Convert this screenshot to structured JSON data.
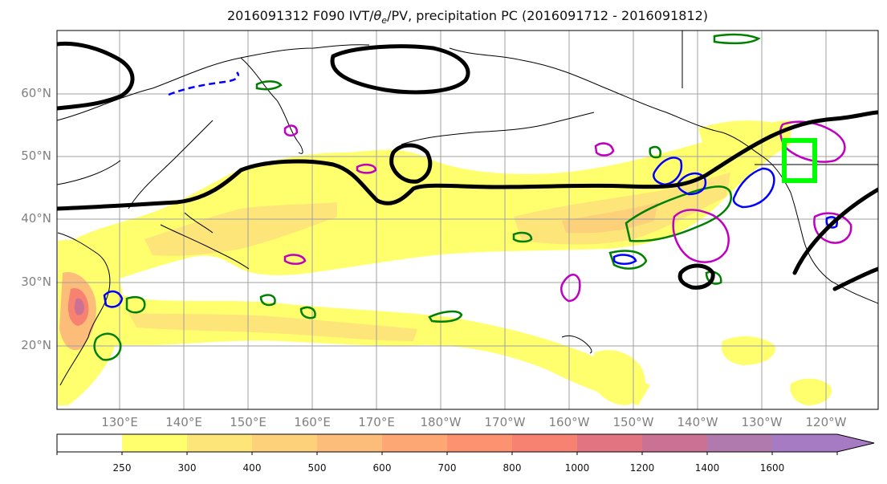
{
  "title": {
    "prefix": "2016091312 F090 IVT/",
    "theta": "θ",
    "sub": "e",
    "suffix": "/PV, precipitation PC (2016091712 - 2016091812)"
  },
  "lat_labels": [
    "60°N",
    "50°N",
    "40°N",
    "30°N",
    "20°N"
  ],
  "lon_labels": [
    "130°E",
    "140°E",
    "150°E",
    "160°E",
    "170°E",
    "180°W",
    "170°W",
    "160°W",
    "150°W",
    "140°W",
    "130°W",
    "120°W"
  ],
  "colorbar": {
    "ticks": [
      "250",
      "300",
      "400",
      "500",
      "600",
      "700",
      "800",
      "1000",
      "1200",
      "1400",
      "1600"
    ],
    "colors": [
      "#ffffff",
      "#ffff6e",
      "#fee57a",
      "#fdd07a",
      "#fdbd7a",
      "#fda774",
      "#fc9270",
      "#f88271",
      "#e27380",
      "#cb7194",
      "#b07aaf",
      "#a67bc4"
    ]
  },
  "colors": {
    "pv": "#000000",
    "blue_contour": "#0000ff",
    "green_contour": "#008000",
    "magenta_contour": "#c000c0",
    "box": "#00ff00"
  }
}
